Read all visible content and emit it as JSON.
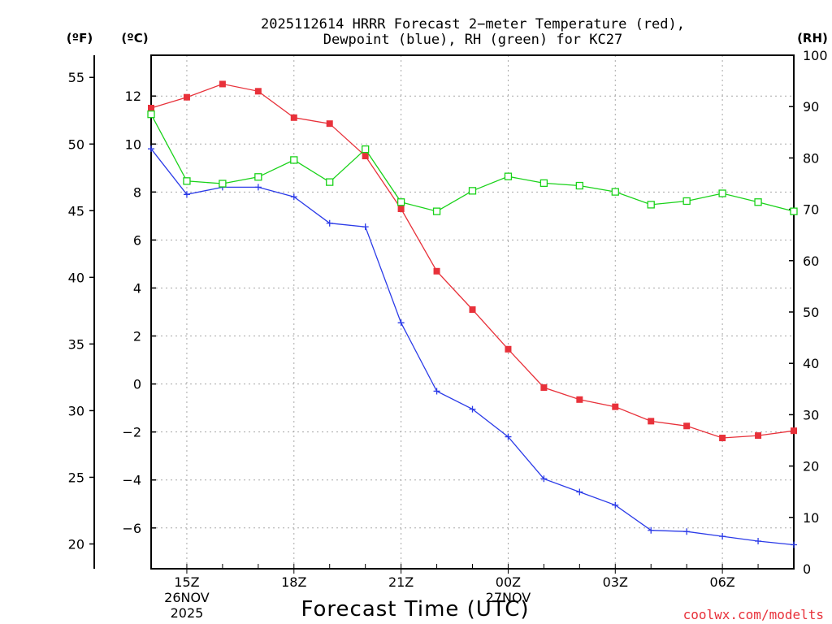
{
  "chart_data": {
    "type": "line",
    "title": "2025112614 HRRR Forecast 2−meter Temperature (red),",
    "subtitle": "Dewpoint (blue), RH (green) for KC27",
    "xlabel": "Forecast Time (UTC)",
    "unit_f": "(ºF)",
    "unit_c": "(ºC)",
    "unit_rh": "(RH)",
    "credit": "coolwx.com/modelts",
    "x_hours": [
      14,
      15,
      16,
      17,
      18,
      19,
      20,
      21,
      22,
      23,
      24,
      25,
      26,
      27,
      28,
      29,
      30,
      31,
      32
    ],
    "x_ticks": [
      {
        "hour": 15,
        "label": "15Z",
        "sub": [
          "26NOV",
          "2025"
        ]
      },
      {
        "hour": 18,
        "label": "18Z",
        "sub": []
      },
      {
        "hour": 21,
        "label": "21Z",
        "sub": []
      },
      {
        "hour": 24,
        "label": "00Z",
        "sub": [
          "27NOV"
        ]
      },
      {
        "hour": 27,
        "label": "03Z",
        "sub": []
      },
      {
        "hour": 30,
        "label": "06Z",
        "sub": []
      }
    ],
    "xlim": [
      14,
      32
    ],
    "ylim_c": [
      -7.7,
      13.7
    ],
    "ylim_rh": [
      0,
      100
    ],
    "c_ticks": [
      -6,
      -4,
      -2,
      0,
      2,
      4,
      6,
      8,
      10,
      12
    ],
    "f_ticks": [
      20,
      25,
      30,
      35,
      40,
      45,
      50,
      55
    ],
    "rh_ticks": [
      0,
      10,
      20,
      30,
      40,
      50,
      60,
      70,
      80,
      90,
      100
    ],
    "series": [
      {
        "name": "Temperature",
        "unit": "C",
        "color": "#e8313a",
        "marker": "filled-square",
        "values": [
          11.5,
          11.95,
          12.5,
          12.2,
          11.1,
          10.85,
          9.5,
          7.3,
          4.7,
          3.1,
          1.45,
          -0.15,
          -0.65,
          -0.95,
          -1.55,
          -1.75,
          -2.25,
          -2.15,
          -1.95
        ]
      },
      {
        "name": "Dewpoint",
        "unit": "C",
        "color": "#2b3be8",
        "marker": "plus",
        "values": [
          9.8,
          7.9,
          8.2,
          8.2,
          7.8,
          6.7,
          6.55,
          2.55,
          -0.3,
          -1.05,
          -2.2,
          -3.95,
          -4.5,
          -5.05,
          -6.1,
          -6.15,
          -6.35,
          -6.55,
          -6.7
        ]
      },
      {
        "name": "RH",
        "unit": "%",
        "color": "#19d219",
        "marker": "open-square",
        "values": [
          88.5,
          75.5,
          75,
          76.3,
          79.6,
          75.3,
          81.7,
          71.4,
          69.6,
          73.6,
          76.4,
          75.1,
          74.6,
          73.4,
          70.9,
          71.6,
          73.1,
          71.4,
          69.6
        ]
      }
    ]
  }
}
